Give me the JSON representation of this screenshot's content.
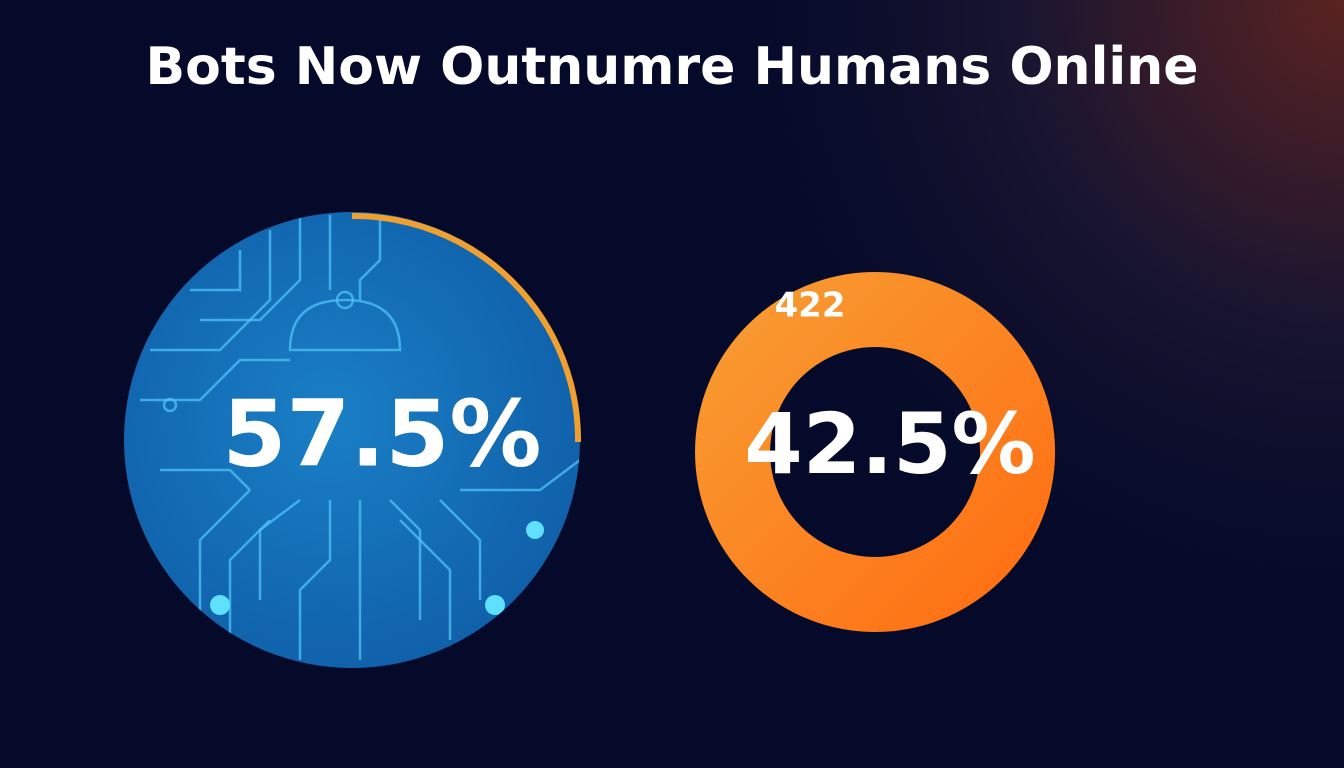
{
  "title": "Bots Now Outnumre Humans Online",
  "bots": {
    "label": "57.5%"
  },
  "humans": {
    "badge": "422",
    "label": "42.5%"
  }
}
